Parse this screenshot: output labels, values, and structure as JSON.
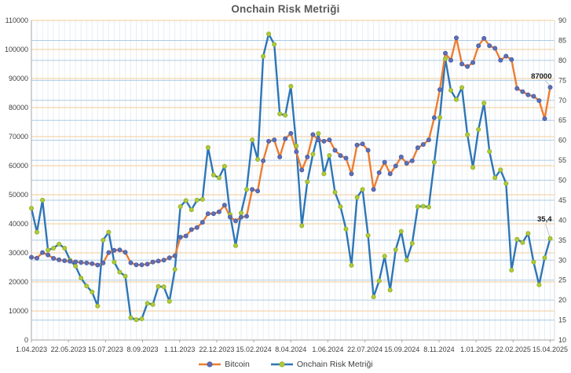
{
  "title": "Onchain Risk Metriği",
  "chart_data": {
    "type": "line",
    "title": "Onchain Risk Metriği",
    "x_tick_labels": [
      "1.04.2023",
      "22.05.2023",
      "15.07.2023",
      "8.09.2023",
      "1.11.2023",
      "22.12.2023",
      "15.02.2024",
      "8.04.2024",
      "1.06.2024",
      "22.07.2024",
      "15.09.2024",
      "8.11.2024",
      "1.01.2025",
      "22.02.2025",
      "15.04.2025"
    ],
    "left_axis": {
      "min": 0,
      "max": 110000,
      "step": 10000,
      "label_format": "plain"
    },
    "right_axis": {
      "min": 10,
      "max": 90,
      "step": 5
    },
    "grid": true,
    "legend_position": "bottom",
    "series": [
      {
        "name": "Bitcoin",
        "axis": "left",
        "color": "#ED7D31",
        "marker_color": "#5B6FB5",
        "marker_edge": "#4A5DA5",
        "values": [
          28500,
          28200,
          30100,
          29300,
          28100,
          27600,
          27300,
          27100,
          26900,
          26700,
          26500,
          26300,
          25800,
          26500,
          30100,
          30900,
          31000,
          30200,
          26600,
          25900,
          25900,
          26100,
          26800,
          27200,
          27500,
          28300,
          29000,
          35400,
          35800,
          38000,
          38700,
          40500,
          43500,
          43500,
          44100,
          46400,
          42300,
          41000,
          42300,
          42600,
          51800,
          51300,
          61700,
          68400,
          68900,
          63000,
          69300,
          71100,
          64800,
          58500,
          63000,
          70700,
          68900,
          68400,
          68900,
          65300,
          63500,
          62600,
          57200,
          67100,
          67500,
          65300,
          51800,
          57600,
          61200,
          57200,
          59900,
          63000,
          60800,
          61700,
          66200,
          67300,
          68900,
          76500,
          86200,
          98700,
          96300,
          104000,
          95000,
          94100,
          95500,
          101300,
          103800,
          101300,
          100400,
          96300,
          97700,
          96500,
          86600,
          85500,
          84400,
          83900,
          82400,
          76200,
          87000
        ]
      },
      {
        "name": "Onchain Risk Metriği",
        "axis": "right",
        "color": "#2E75B6",
        "marker_color": "#AFCA3A",
        "marker_edge": "#8FAE24",
        "values": [
          43,
          37,
          45,
          32.5,
          33,
          34,
          33,
          30,
          28.5,
          25.5,
          23.5,
          22,
          18.5,
          35,
          37,
          29.5,
          27,
          26,
          15.6,
          15.1,
          15.3,
          19.2,
          18.9,
          23.4,
          23.3,
          19.7,
          27.7,
          43.4,
          44.9,
          42.6,
          45,
          45.2,
          58.2,
          51.3,
          50.6,
          53.5,
          41.4,
          33.6,
          41.8,
          47.7,
          60.1,
          55.2,
          81,
          86.6,
          84,
          66.6,
          66.3,
          73.5,
          58.6,
          38.6,
          49.6,
          56.5,
          61.7,
          51.6,
          56.2,
          47,
          43.4,
          37.8,
          28.7,
          45.7,
          47.7,
          36.2,
          20.8,
          24.8,
          31,
          22.5,
          32.6,
          37.2,
          30,
          34.2,
          43.4,
          43.5,
          43.3,
          54.5,
          65.7,
          80.4,
          72.5,
          70.2,
          73.2,
          61.4,
          53.2,
          62.7,
          69.3,
          57.2,
          50.6,
          52.6,
          49.2,
          27.5,
          35.2,
          34.4,
          36.7,
          29.5,
          23.8,
          30.6,
          35.4
        ]
      }
    ],
    "annotations": [
      {
        "text": "87000",
        "series_index": 0,
        "point": "last",
        "dy": -11
      },
      {
        "text": "35,4",
        "series_index": 1,
        "point": "last",
        "dy": -22
      }
    ]
  },
  "legend": {
    "items": [
      {
        "label": "Bitcoin"
      },
      {
        "label": "Onchain Risk Metriği"
      }
    ]
  },
  "colors": {
    "background": "#ffffff",
    "title_text": "#595959",
    "axis_text": "#404040",
    "axis_line": "#A6A6A6",
    "plot_border": "#D9D9D9",
    "grid_left": "#F3CB96",
    "grid_right": "#ABCBE5",
    "grid_vertical": "#E8EEF4",
    "annotation_text": "#1a1a1a",
    "annotation_leader": "#BFBFBF"
  }
}
